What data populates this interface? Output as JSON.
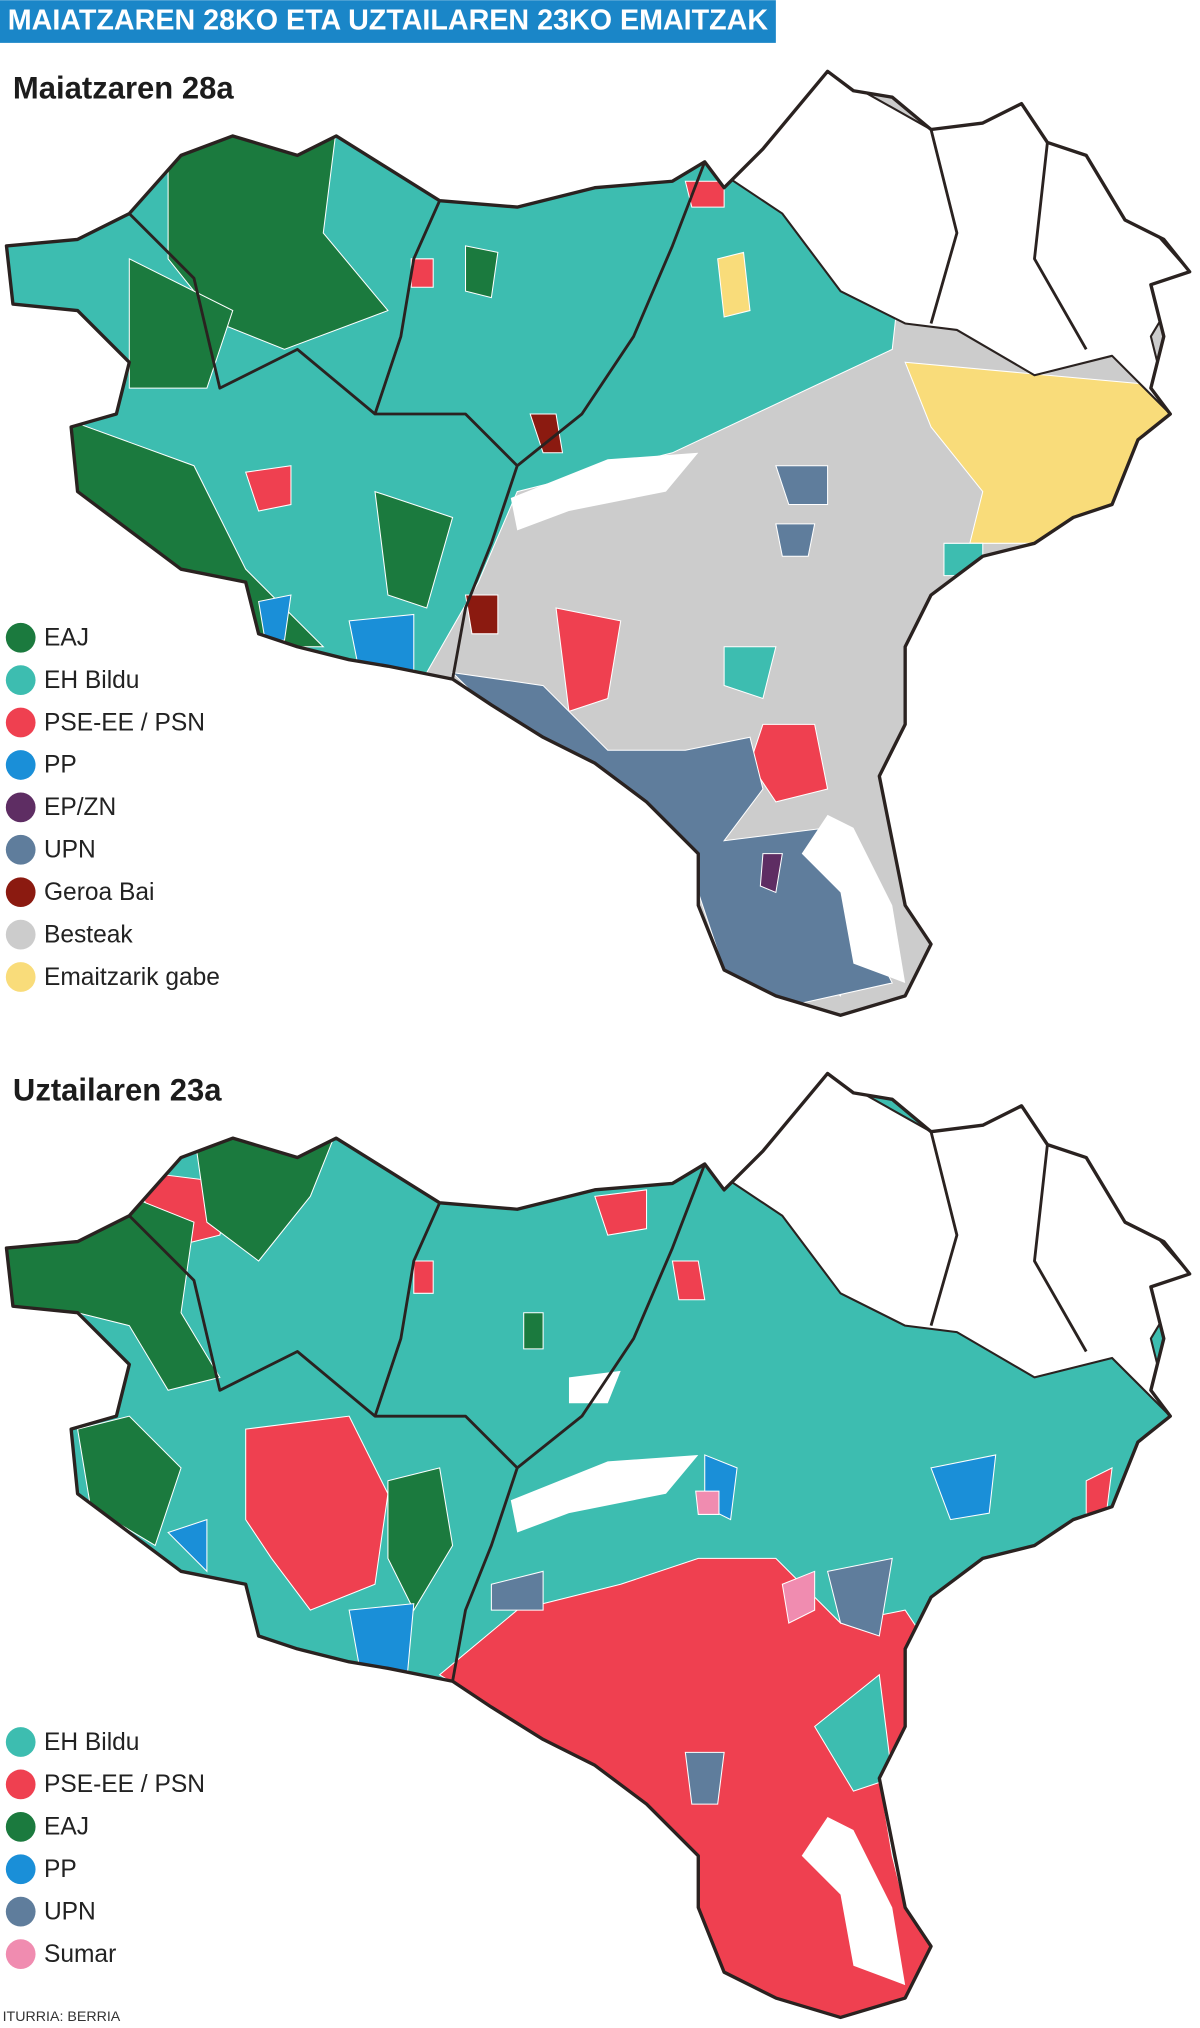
{
  "header": {
    "title": "MAIATZAREN 28KO ETA UZTAILAREN 23KO EMAITZAK"
  },
  "maps": [
    {
      "title": "Maiatzaren 28a",
      "legend": [
        {
          "label": "EAJ",
          "color": "#1b7a3e"
        },
        {
          "label": "EH Bildu",
          "color": "#3dbdb0"
        },
        {
          "label": "PSE-EE / PSN",
          "color": "#ef4050"
        },
        {
          "label": "PP",
          "color": "#1a8fd8"
        },
        {
          "label": "EP/ZN",
          "color": "#5e2d63"
        },
        {
          "label": "UPN",
          "color": "#5f7d9c"
        },
        {
          "label": "Geroa Bai",
          "color": "#8b1a10"
        },
        {
          "label": "Besteak",
          "color": "#cccccc"
        },
        {
          "label": "Emaitzarik gabe",
          "color": "#f9dc7a"
        }
      ]
    },
    {
      "title": "Uztailaren 23a",
      "legend": [
        {
          "label": "EH Bildu",
          "color": "#3dbdb0"
        },
        {
          "label": "PSE-EE / PSN",
          "color": "#ef4050"
        },
        {
          "label": "EAJ",
          "color": "#1b7a3e"
        },
        {
          "label": "PP",
          "color": "#1a8fd8"
        },
        {
          "label": "UPN",
          "color": "#5f7d9c"
        },
        {
          "label": "Sumar",
          "color": "#f08cb0"
        }
      ]
    }
  ],
  "source": "ITURRIA: BERRIA"
}
